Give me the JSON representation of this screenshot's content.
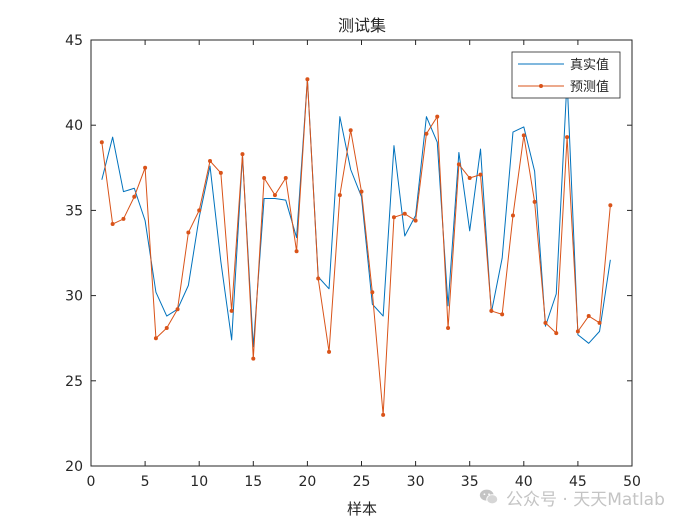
{
  "chart_data": {
    "type": "line",
    "title": "测试集",
    "xlabel": "样本",
    "ylabel": "",
    "xlim": [
      0,
      50
    ],
    "ylim": [
      20,
      45
    ],
    "xticks": [
      0,
      5,
      10,
      15,
      20,
      25,
      30,
      35,
      40,
      45,
      50
    ],
    "yticks": [
      20,
      25,
      30,
      35,
      40,
      45
    ],
    "grid": false,
    "legend_position": "top-right",
    "x": [
      1,
      2,
      3,
      4,
      5,
      6,
      7,
      8,
      9,
      10,
      11,
      12,
      13,
      14,
      15,
      16,
      17,
      18,
      19,
      20,
      21,
      22,
      23,
      24,
      25,
      26,
      27,
      28,
      29,
      30,
      31,
      32,
      33,
      34,
      35,
      36,
      37,
      38,
      39,
      40,
      41,
      42,
      43,
      44,
      45,
      46,
      47,
      48
    ],
    "series": [
      {
        "name": "真实值",
        "color": "#0072BD",
        "marker": "none",
        "values": [
          36.8,
          39.3,
          36.1,
          36.3,
          34.4,
          30.2,
          28.8,
          29.2,
          30.6,
          34.6,
          37.6,
          32.0,
          27.4,
          38.2,
          27.0,
          35.7,
          35.7,
          35.6,
          33.4,
          42.7,
          31.1,
          30.4,
          40.5,
          37.4,
          35.8,
          29.5,
          28.8,
          38.8,
          33.5,
          34.7,
          40.5,
          39.0,
          29.4,
          38.4,
          33.8,
          38.6,
          29.0,
          32.2,
          39.6,
          39.9,
          37.3,
          28.2,
          30.1,
          42.7,
          27.7,
          27.2,
          27.9,
          32.1
        ]
      },
      {
        "name": "预测值",
        "color": "#D95319",
        "marker": "dot",
        "values": [
          39.0,
          34.2,
          34.5,
          35.8,
          37.5,
          27.5,
          28.1,
          29.2,
          33.7,
          35.0,
          37.9,
          37.2,
          29.1,
          38.3,
          26.3,
          36.9,
          35.9,
          36.9,
          32.6,
          42.7,
          31.0,
          26.7,
          35.9,
          39.7,
          36.1,
          30.2,
          23.0,
          34.6,
          34.8,
          34.4,
          39.5,
          40.5,
          28.1,
          37.7,
          36.9,
          37.1,
          29.1,
          28.9,
          34.7,
          39.4,
          35.5,
          28.4,
          27.8,
          39.3,
          27.9,
          28.8,
          28.4,
          35.3
        ]
      }
    ]
  },
  "watermark": {
    "text": "公众号 · 天天Matlab",
    "icon": "wechat-icon"
  }
}
